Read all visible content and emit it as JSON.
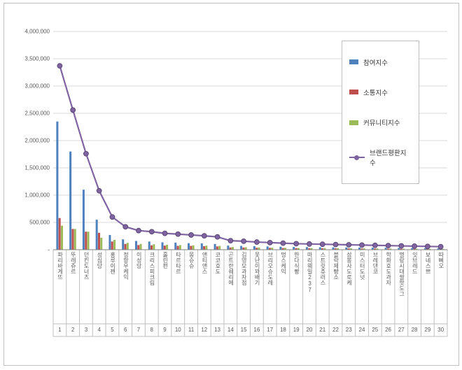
{
  "chart_data": {
    "type": "bar",
    "subtype": "grouped-bars-with-line-overlay",
    "title": "",
    "legend_position": "right-top",
    "grid": true,
    "colors": {
      "axis_text": "#595959",
      "grid": "#d9d9d9",
      "border": "#bfbfbf",
      "axis_line": "#808080",
      "marker_outline": "#5b4875"
    },
    "y_axis": {
      "min": 0,
      "max": 4000000,
      "step": 500000,
      "tick_labels": [
        "-",
        "500,000",
        "1,000,000",
        "1,500,000",
        "2,000,000",
        "2,500,000",
        "3,000,000",
        "3,500,000",
        "4,000,000"
      ]
    },
    "categories": [
      "파리바게뜨",
      "뚜레쥬르",
      "던킨도너츠",
      "성심당",
      "홍루이젠",
      "정항우케익",
      "이성당",
      "크리스피크림",
      "훌린펀",
      "타르타르",
      "몽슈슈",
      "앤티앤스",
      "코코호도",
      "곤트란쉐리에",
      "김영모과자점",
      "못난이꽈배기",
      "브리오슈도레",
      "멍스케익",
      "한다식빵",
      "마리웨일237",
      "스트릿츄러스",
      "블락제빵소",
      "삼봉사도로케",
      "미스터도넛",
      "브레댄코",
      "학화호도과자",
      "명랑시대쌀핫도그",
      "잇브레드",
      "보네스쁘",
      "따삐오"
    ],
    "ranks": [
      "1",
      "2",
      "3",
      "4",
      "5",
      "6",
      "7",
      "8",
      "9",
      "10",
      "11",
      "12",
      "13",
      "14",
      "15",
      "16",
      "17",
      "18",
      "19",
      "20",
      "21",
      "22",
      "23",
      "24",
      "25",
      "26",
      "27",
      "28",
      "29",
      "30"
    ],
    "series": [
      {
        "name": "참여지수",
        "type": "bar",
        "color": "#4f81bd",
        "values": [
          2350000,
          1800000,
          1100000,
          550000,
          270000,
          190000,
          160000,
          150000,
          135000,
          130000,
          120000,
          115000,
          105000,
          75000,
          70000,
          65000,
          60000,
          55000,
          50000,
          48000,
          45000,
          43000,
          41000,
          39000,
          37000,
          35000,
          33000,
          30000,
          28000,
          25000
        ]
      },
      {
        "name": "소통지수",
        "type": "bar",
        "color": "#c0504d",
        "values": [
          580000,
          380000,
          330000,
          310000,
          150000,
          105000,
          85000,
          80000,
          75000,
          70000,
          70000,
          65000,
          60000,
          40000,
          40000,
          35000,
          33000,
          31000,
          29000,
          27000,
          26000,
          25000,
          24000,
          22000,
          21000,
          20000,
          19000,
          18000,
          16000,
          15000
        ]
      },
      {
        "name": "커뮤니티지수",
        "type": "bar",
        "color": "#9bbb59",
        "values": [
          440000,
          380000,
          330000,
          220000,
          180000,
          125000,
          105000,
          100000,
          90000,
          85000,
          80000,
          75000,
          70000,
          50000,
          45000,
          40000,
          37000,
          34000,
          31000,
          30000,
          29000,
          27000,
          25000,
          24000,
          22000,
          20000,
          18000,
          17000,
          16000,
          15000
        ]
      },
      {
        "name": "브랜드평판지수",
        "type": "line",
        "marker": "circle",
        "color": "#8064a2",
        "values": [
          3370000,
          2560000,
          1760000,
          1080000,
          600000,
          420000,
          350000,
          330000,
          300000,
          285000,
          270000,
          255000,
          235000,
          165000,
          155000,
          140000,
          130000,
          120000,
          110000,
          105000,
          100000,
          95000,
          90000,
          85000,
          80000,
          75000,
          70000,
          65000,
          60000,
          55000
        ]
      }
    ]
  }
}
